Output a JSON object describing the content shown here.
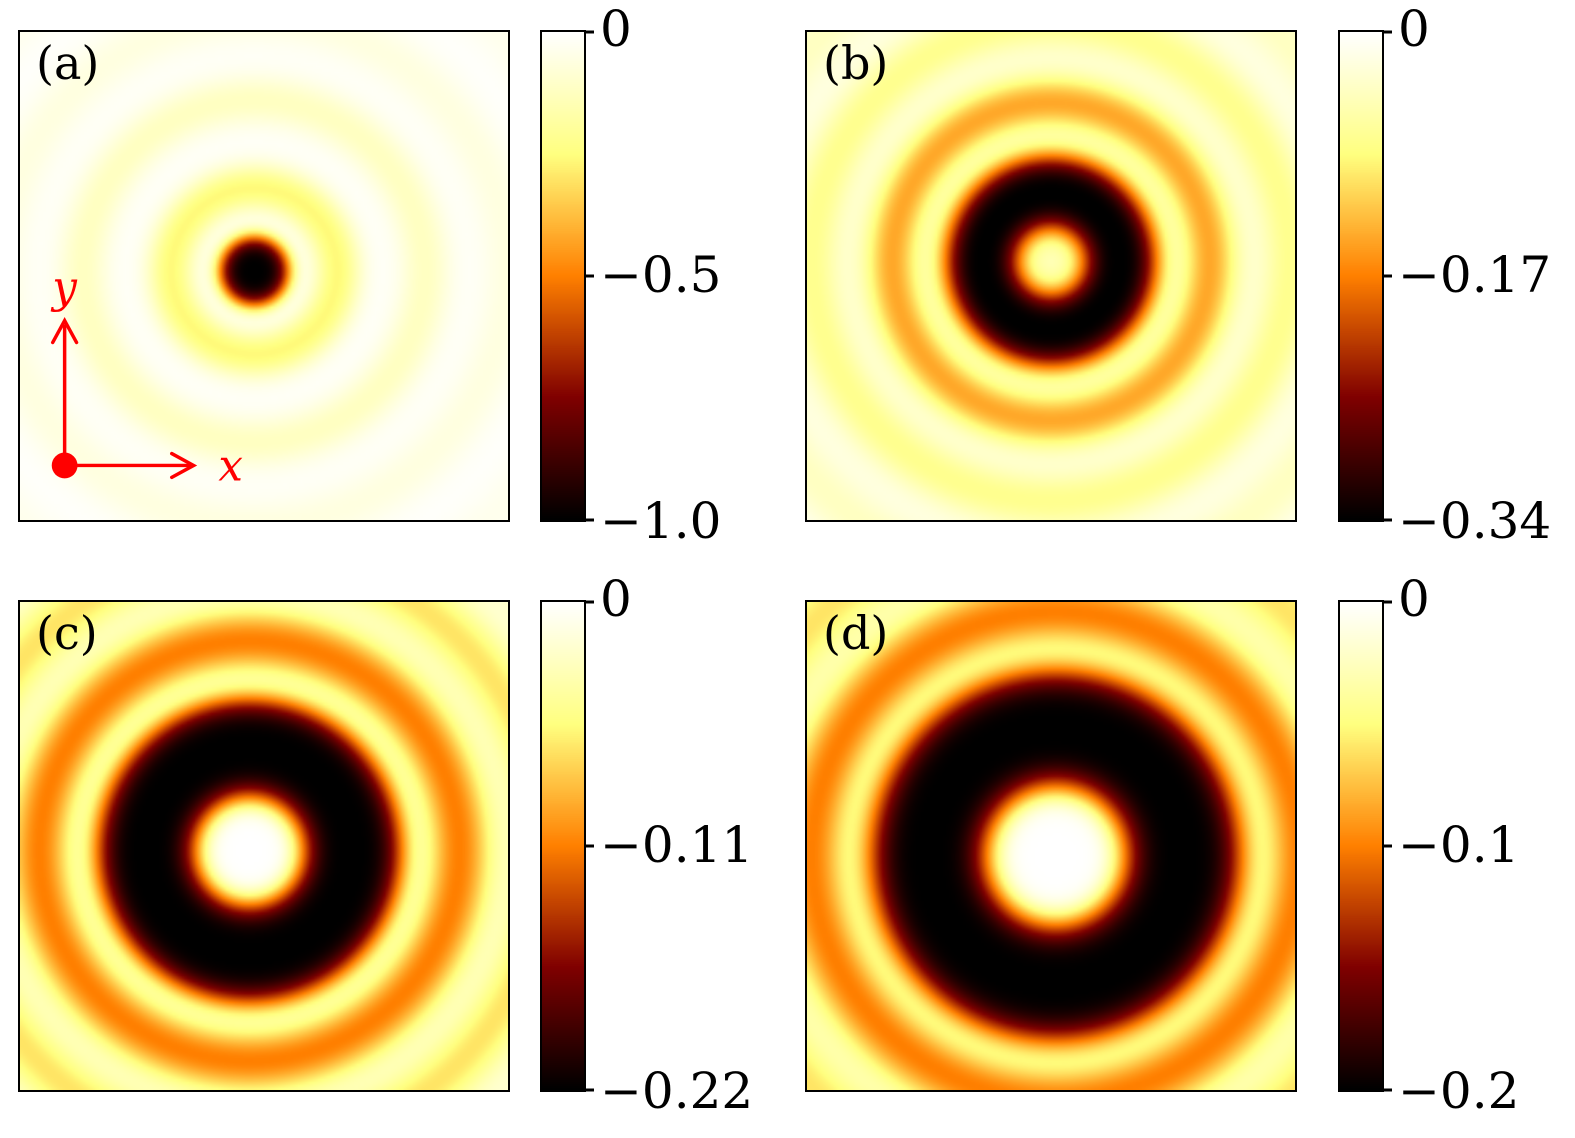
{
  "chart_data": {
    "type": "heatmap",
    "layout": "2x2 grid of square heatmaps, each with its own vertical colorbar on the right",
    "colormap": "afmhot_r",
    "colormap_scale_description": "0 at top is white, values become yellow, orange, red, then black at the most negative value",
    "panels": [
      {
        "label": "(a)",
        "vmax": 0,
        "vmin": -1.0,
        "colorbar_ticks": [
          "0",
          "−0.5",
          "−1.0"
        ],
        "center": {
          "x": 0.48,
          "y": 0.49
        },
        "radial_profile_rings": [
          {
            "r": 0.0,
            "w": 0.075,
            "a": 1.0,
            "p": 4
          },
          {
            "r": 0.17,
            "w": 0.05,
            "a": 0.26
          },
          {
            "r": 0.35,
            "w": 0.055,
            "a": 0.12
          },
          {
            "r": 0.52,
            "w": 0.06,
            "a": 0.06
          },
          {
            "r": 0.7,
            "w": 0.06,
            "a": 0.035
          }
        ]
      },
      {
        "label": "(b)",
        "vmax": 0,
        "vmin": -0.34,
        "colorbar_ticks": [
          "0",
          "−0.17",
          "−0.34"
        ],
        "center": {
          "x": 0.5,
          "y": 0.47
        },
        "radial_profile_rings": [
          {
            "r": 0.0,
            "w": 0.05,
            "a": 0.13
          },
          {
            "r": 0.14,
            "w": 0.085,
            "a": 1.0,
            "p": 3
          },
          {
            "r": 0.325,
            "w": 0.06,
            "a": 0.42
          },
          {
            "r": 0.49,
            "w": 0.065,
            "a": 0.22
          },
          {
            "r": 0.66,
            "w": 0.07,
            "a": 0.12
          }
        ]
      },
      {
        "label": "(c)",
        "vmax": 0,
        "vmin": -0.22,
        "colorbar_ticks": [
          "0",
          "−0.11",
          "−0.22"
        ],
        "center": {
          "x": 0.47,
          "y": 0.51
        },
        "radial_profile_rings": [
          {
            "r": 0.21,
            "w": 0.11,
            "a": 1.0,
            "p": 4
          },
          {
            "r": 0.43,
            "w": 0.07,
            "a": 0.5
          },
          {
            "r": 0.61,
            "w": 0.07,
            "a": 0.3
          },
          {
            "r": 0.79,
            "w": 0.08,
            "a": 0.15
          }
        ]
      },
      {
        "label": "(d)",
        "vmax": 0,
        "vmin": -0.2,
        "colorbar_ticks": [
          "0",
          "−0.1",
          "−0.2"
        ],
        "center": {
          "x": 0.51,
          "y": 0.52
        },
        "radial_profile_rings": [
          {
            "r": 0.26,
            "w": 0.13,
            "a": 1.0,
            "p": 4
          },
          {
            "r": 0.5,
            "w": 0.075,
            "a": 0.5
          },
          {
            "r": 0.69,
            "w": 0.08,
            "a": 0.3
          },
          {
            "r": 0.88,
            "w": 0.08,
            "a": 0.15
          }
        ]
      }
    ],
    "annotation": {
      "panel": "(a)",
      "x_label": "x",
      "y_label": "y",
      "color": "#ff0000"
    }
  }
}
